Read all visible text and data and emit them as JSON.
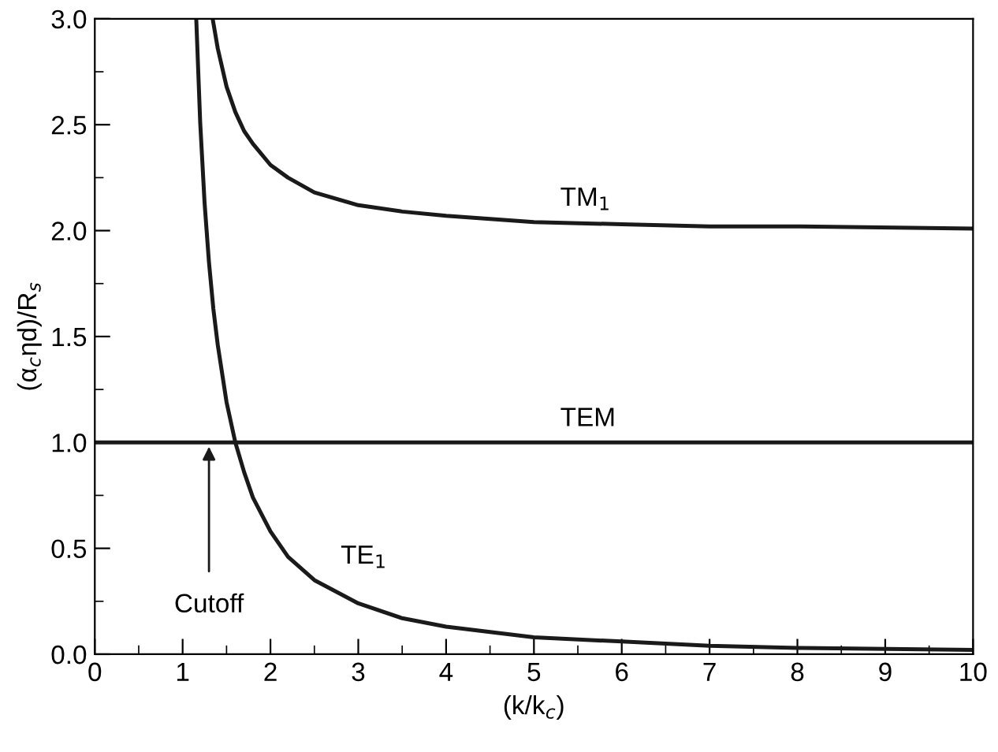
{
  "chart_data": {
    "type": "line",
    "xlabel": "(k/k$_{c}$)",
    "ylabel": "(α$_{c}$ηd)/R$_{s}$",
    "series": [
      {
        "color": "#1a1a1a",
        "x": [
          1.342,
          1.4,
          1.5,
          1.6,
          1.7,
          1.8,
          2.0,
          2.2,
          2.5,
          3,
          3.5,
          4,
          5,
          6,
          7,
          8,
          10
        ],
        "values": [
          3.0,
          2.86,
          2.68,
          2.56,
          2.47,
          2.41,
          2.31,
          2.25,
          2.18,
          2.12,
          2.09,
          2.07,
          2.04,
          2.03,
          2.02,
          2.02,
          2.01
        ]
      },
      {
        "color": "#1a1a1a",
        "x": [
          0,
          10
        ],
        "values": [
          1.0,
          1.0
        ]
      },
      {
        "color": "#1a1a1a",
        "x": [
          1.155,
          1.2,
          1.25,
          1.3,
          1.35,
          1.4,
          1.5,
          1.6,
          1.7,
          1.8,
          2.0,
          2.2,
          2.5,
          3,
          3.5,
          4,
          5,
          6,
          7,
          8,
          10
        ],
        "values": [
          3.0,
          2.51,
          2.13,
          1.85,
          1.63,
          1.46,
          1.19,
          1.0,
          0.86,
          0.74,
          0.58,
          0.46,
          0.35,
          0.24,
          0.17,
          0.13,
          0.08,
          0.06,
          0.04,
          0.03,
          0.02
        ]
      }
    ],
    "annotations": [
      {
        "text": "TM$_{1}$",
        "x": 5,
        "y": 2.04
      },
      {
        "text": "TEM",
        "x": 5,
        "y": 1.0
      },
      {
        "text": "TE$_{1}$",
        "x": 2.5,
        "y": 0.35
      },
      {
        "text": "Cutoff",
        "x": 1.3,
        "y": 0.98
      }
    ],
    "xlim": [
      0,
      10
    ],
    "ylim": [
      0,
      3
    ],
    "xticks": [
      0,
      1,
      2,
      3,
      4,
      5,
      6,
      7,
      8,
      9,
      10
    ],
    "yticks": [
      {
        "value": 0,
        "label": "0.0"
      },
      {
        "value": 0.5,
        "label": "0.5"
      },
      {
        "value": 1,
        "label": "1.0"
      },
      {
        "value": 1.5,
        "label": "1.5"
      },
      {
        "value": 2,
        "label": "2.0"
      },
      {
        "value": 2.5,
        "label": "2.5"
      },
      {
        "value": 3,
        "label": "3.0"
      }
    ],
    "grid": false,
    "legend": false,
    "marker": "none",
    "line_style": "solid"
  }
}
